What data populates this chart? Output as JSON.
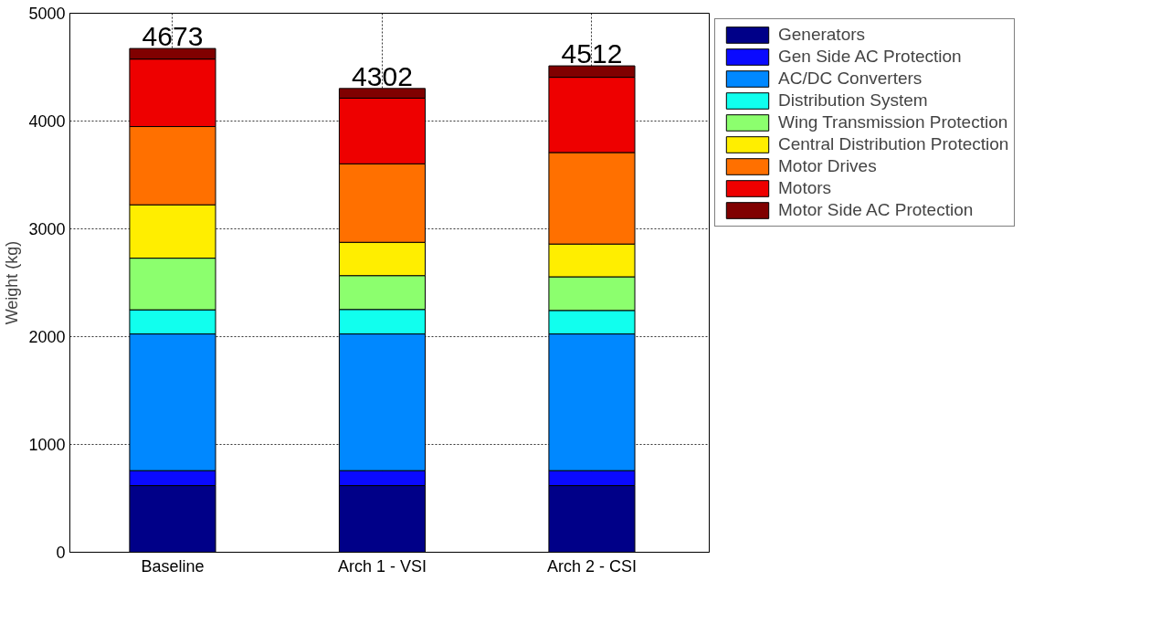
{
  "chart_data": {
    "type": "bar",
    "stacked": true,
    "ylabel": "Weight (kg)",
    "categories": [
      "Baseline",
      "Arch 1 - VSI",
      "Arch 2 - CSI"
    ],
    "series": [
      {
        "name": "Generators",
        "color": "#000088",
        "values": [
          618,
          618,
          618
        ]
      },
      {
        "name": "Gen Side AC Protection",
        "color": "#0a0aff",
        "values": [
          139,
          139,
          139
        ]
      },
      {
        "name": "AC/DC Converters",
        "color": "#0088ff",
        "values": [
          1268,
          1268,
          1268
        ]
      },
      {
        "name": "Distribution System",
        "color": "#11ffee",
        "values": [
          224,
          227,
          218
        ]
      },
      {
        "name": "Wing Transmission Protection",
        "color": "#8cff6e",
        "values": [
          479,
          314,
          312
        ]
      },
      {
        "name": "Central Distribution Protection",
        "color": "#ffee00",
        "values": [
          495,
          309,
          304
        ]
      },
      {
        "name": "Motor Drives",
        "color": "#ff7000",
        "values": [
          726,
          728,
          849
        ]
      },
      {
        "name": "Motors",
        "color": "#ee0000",
        "values": [
          626,
          609,
          698
        ]
      },
      {
        "name": "Motor Side AC Protection",
        "color": "#800000",
        "values": [
          98,
          90,
          106
        ]
      }
    ],
    "totals": [
      "4673",
      "4302",
      "4512"
    ],
    "ylim": [
      0,
      5000
    ],
    "yticks": [
      0,
      1000,
      2000,
      3000,
      4000,
      5000
    ],
    "grid": true,
    "legend": "top right"
  }
}
